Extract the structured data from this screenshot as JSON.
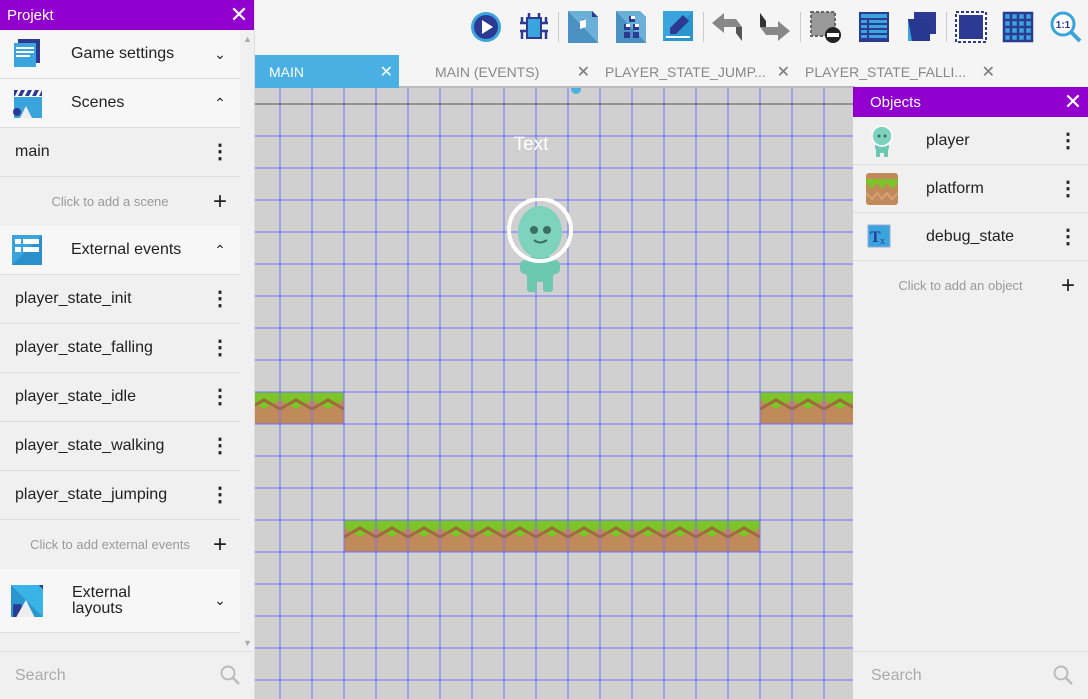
{
  "project_panel": {
    "title": "Projekt",
    "close_icon": "close-icon",
    "sections": {
      "game_settings": {
        "label": "Game settings",
        "icon": "game-settings-icon"
      },
      "scenes": {
        "label": "Scenes",
        "icon": "scenes-icon",
        "items": [
          "main"
        ],
        "add_label": "Click to add a scene"
      },
      "external_events": {
        "label": "External events",
        "icon": "external-events-icon",
        "items": [
          "player_state_init",
          "player_state_falling",
          "player_state_idle",
          "player_state_walking",
          "player_state_jumping"
        ],
        "add_label": "Click to add external events"
      },
      "external_layouts": {
        "label": "External layouts",
        "icon": "external-layouts-icon"
      }
    },
    "search_placeholder": "Search"
  },
  "toolbar": {
    "buttons": [
      "preview",
      "debug",
      "add-object",
      "object-groups",
      "edit-object",
      "undo",
      "redo",
      "delete-selection",
      "instances-list",
      "layers",
      "window-mask",
      "grid",
      "zoom-reset"
    ]
  },
  "tabs": [
    {
      "label": "MAIN",
      "active": true
    },
    {
      "label": "MAIN (EVENTS)"
    },
    {
      "label": "PLAYER_STATE_JUMP..."
    },
    {
      "label": "PLAYER_STATE_FALLI..."
    }
  ],
  "scene": {
    "text_object": "Text"
  },
  "objects_panel": {
    "title": "Objects",
    "items": [
      {
        "name": "player",
        "icon": "player-sprite-icon"
      },
      {
        "name": "platform",
        "icon": "platform-tile-icon"
      },
      {
        "name": "debug_state",
        "icon": "text-object-icon"
      }
    ],
    "add_label": "Click to add an object",
    "search_placeholder": "Search"
  },
  "colors": {
    "accent": "#9100ce",
    "tab_active": "#4ab0e4",
    "grid": "#6f6fff",
    "canvas": "#d0d0d0"
  }
}
